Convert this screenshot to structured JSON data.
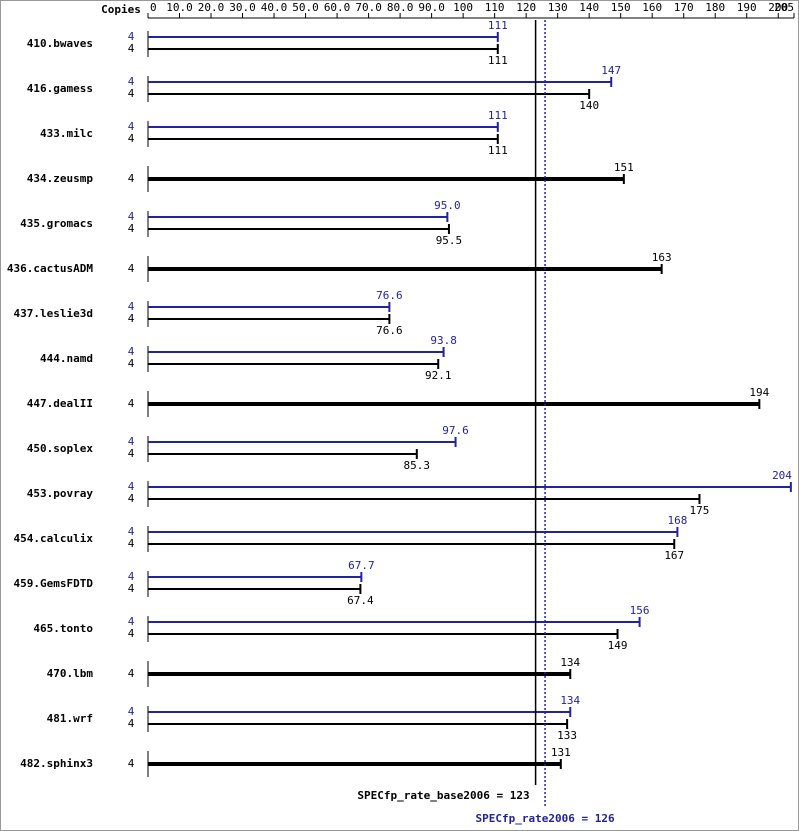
{
  "chart_data": {
    "type": "spec-bar",
    "copies_header": "Copies",
    "categories": [
      "410.bwaves",
      "416.gamess",
      "433.milc",
      "434.zeusmp",
      "435.gromacs",
      "436.cactusADM",
      "437.leslie3d",
      "444.namd",
      "447.dealII",
      "450.soplex",
      "453.povray",
      "454.calculix",
      "459.GemsFDTD",
      "465.tonto",
      "470.lbm",
      "481.wrf",
      "482.sphinx3"
    ],
    "series": [
      {
        "color": "#2323a0",
        "copies": [
          4,
          4,
          4,
          null,
          4,
          null,
          4,
          4,
          null,
          4,
          4,
          4,
          4,
          4,
          null,
          4,
          null
        ],
        "values": [
          111,
          147,
          111,
          null,
          95.0,
          null,
          76.6,
          93.8,
          null,
          97.6,
          204,
          168,
          67.7,
          156,
          null,
          134,
          null
        ],
        "value_labels": [
          "111",
          "147",
          "111",
          null,
          "95.0",
          null,
          "76.6",
          "93.8",
          null,
          "97.6",
          "204",
          "168",
          "67.7",
          "156",
          null,
          "134",
          null
        ]
      },
      {
        "color": "#000000",
        "copies": [
          4,
          4,
          4,
          4,
          4,
          4,
          4,
          4,
          4,
          4,
          4,
          4,
          4,
          4,
          4,
          4,
          4
        ],
        "values": [
          111,
          140,
          111,
          151,
          95.5,
          163,
          76.6,
          92.1,
          194,
          85.3,
          175,
          167,
          67.4,
          149,
          134,
          133,
          131
        ],
        "value_labels": [
          "111",
          "140",
          "111",
          "151",
          "95.5",
          "163",
          "76.6",
          "92.1",
          "194",
          "85.3",
          "175",
          "167",
          "67.4",
          "149",
          "134",
          "133",
          "131"
        ]
      }
    ],
    "xlim": [
      0,
      205
    ],
    "xticks": [
      0,
      {
        "value": 10,
        "label": "10.0"
      },
      {
        "value": 20,
        "label": "20.0"
      },
      {
        "value": 30,
        "label": "30.0"
      },
      {
        "value": 40,
        "label": "40.0"
      },
      {
        "value": 50,
        "label": "50.0"
      },
      {
        "value": 60,
        "label": "60.0"
      },
      {
        "value": 70,
        "label": "70.0"
      },
      {
        "value": 80,
        "label": "80.0"
      },
      {
        "value": 90,
        "label": "90.0"
      },
      100,
      110,
      120,
      130,
      140,
      150,
      160,
      170,
      180,
      190,
      200,
      205
    ],
    "reference_lines": [
      {
        "label": "SPECfp_rate_base2006 = 123",
        "value": 123,
        "color": "#000000",
        "style": "solid"
      },
      {
        "label": "SPECfp_rate2006 = 126",
        "value": 126,
        "color": "#2323a0",
        "style": "dotted"
      }
    ]
  }
}
